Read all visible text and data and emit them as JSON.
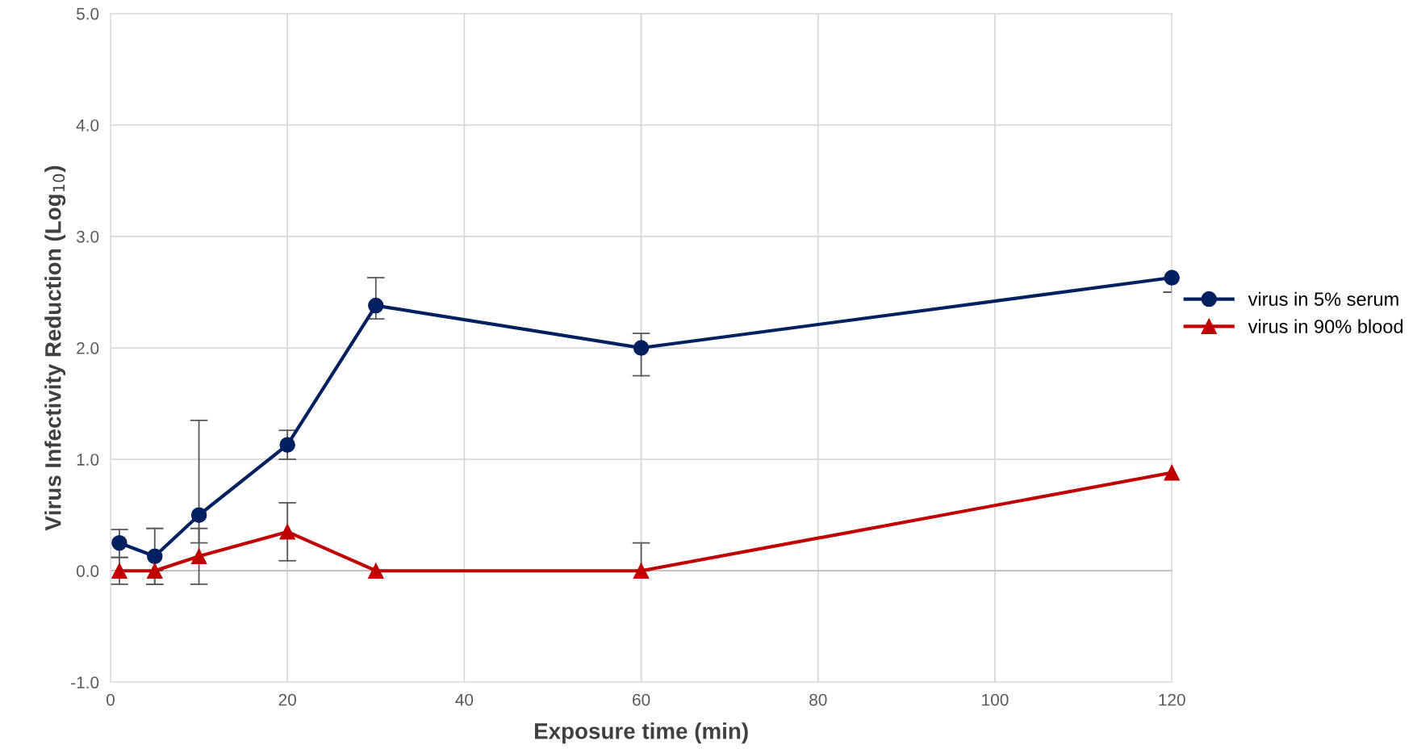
{
  "chart_data": {
    "type": "line",
    "xlabel": "Exposure time (min)",
    "ylabel": "Virus Infectivity Reduction (Log$_{10}$)",
    "x": [
      1,
      5,
      10,
      20,
      30,
      60,
      120
    ],
    "series": [
      {
        "name": "virus in 5% serum",
        "color": "#002060",
        "marker": "circle",
        "values": [
          0.25,
          0.13,
          0.5,
          1.13,
          2.38,
          2.0,
          2.63
        ],
        "errors": [
          [
            0.12,
            0.37
          ],
          [
            -0.12,
            0.38
          ],
          [
            0.25,
            1.35
          ],
          [
            1.0,
            1.26
          ],
          [
            2.26,
            2.63
          ],
          [
            1.75,
            2.13
          ],
          [
            2.5,
            2.63
          ]
        ]
      },
      {
        "name": "virus in 90% blood",
        "color": "#c00000",
        "marker": "triangle",
        "values": [
          0,
          0,
          0.13,
          0.35,
          0,
          0,
          0.88
        ],
        "errors": [
          [
            -0.12,
            0.12
          ],
          [
            -0.12,
            0
          ],
          [
            -0.12,
            0.38
          ],
          [
            0.09,
            0.61
          ],
          null,
          [
            0,
            0.25
          ],
          null
        ]
      }
    ],
    "xlim": [
      0,
      120
    ],
    "xticks": [
      0,
      20,
      40,
      60,
      80,
      100,
      120
    ],
    "ylim": [
      -1.0,
      5.0
    ],
    "yticks": [
      {
        "value": -1.0,
        "label": "-1.0"
      },
      {
        "value": 0.0,
        "label": "0.0"
      },
      {
        "value": 1.0,
        "label": "1.0"
      },
      {
        "value": 2.0,
        "label": "2.0"
      },
      {
        "value": 3.0,
        "label": "3.0"
      },
      {
        "value": 4.0,
        "label": "4.0"
      },
      {
        "value": 5.0,
        "label": "5.0"
      }
    ],
    "grid": true,
    "legend": "right"
  }
}
